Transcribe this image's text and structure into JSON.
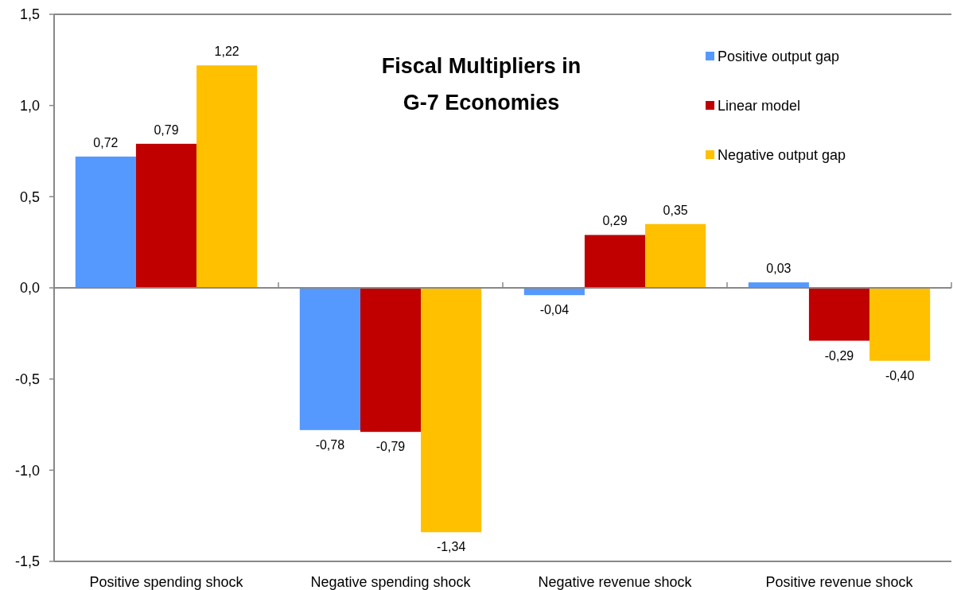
{
  "chart_data": {
    "type": "bar",
    "title": "Fiscal Multipliers in G-7 Economies",
    "categories": [
      "Positive spending shock",
      "Negative spending shock",
      "Negative revenue shock",
      "Positive revenue shock"
    ],
    "series": [
      {
        "name": "Positive output gap",
        "color": "#5599ff",
        "values": [
          0.72,
          -0.78,
          -0.04,
          0.03
        ],
        "value_labels": [
          "0,72",
          "-0,78",
          "-0,04",
          "0,03"
        ]
      },
      {
        "name": "Linear model",
        "color": "#c00000",
        "values": [
          0.79,
          -0.79,
          0.29,
          -0.29
        ],
        "value_labels": [
          "0,79",
          "-0,79",
          "0,29",
          "-0,29"
        ]
      },
      {
        "name": "Negative output gap",
        "color": "#ffc000",
        "values": [
          1.22,
          -1.34,
          0.35,
          -0.4
        ],
        "value_labels": [
          "1,22",
          "-1,34",
          "0,35",
          "-0,40"
        ]
      }
    ],
    "ylim": [
      -1.5,
      1.5
    ],
    "yticks": [
      {
        "value": -1.5,
        "label": "-1,5"
      },
      {
        "value": -1.0,
        "label": "-1,0"
      },
      {
        "value": -0.5,
        "label": "-0,5"
      },
      {
        "value": 0,
        "label": "0,0"
      },
      {
        "value": 0.5,
        "label": "0,5"
      },
      {
        "value": 1.0,
        "label": "1,0"
      },
      {
        "value": 1.5,
        "label": "1,5"
      }
    ],
    "legend": "top right"
  }
}
